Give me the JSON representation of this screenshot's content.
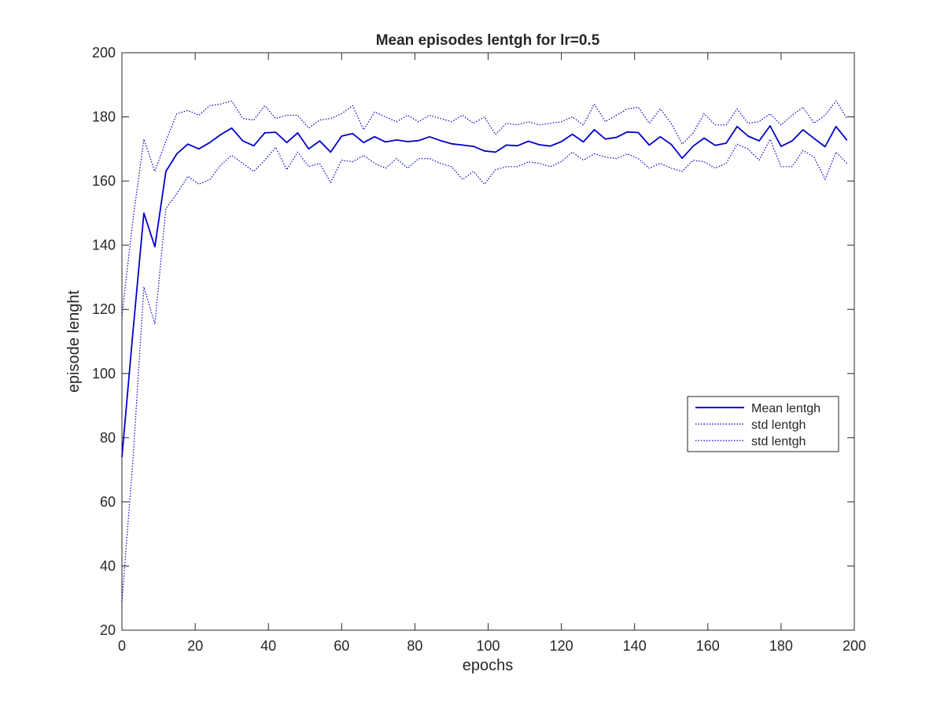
{
  "chart_data": {
    "type": "line",
    "title": "Mean episodes lentgh for lr=0.5",
    "xlabel": "epochs",
    "ylabel": "episode lenght",
    "xlim": [
      0,
      200
    ],
    "ylim": [
      20,
      200
    ],
    "xticks": [
      0,
      20,
      40,
      60,
      80,
      100,
      120,
      140,
      160,
      180,
      200
    ],
    "yticks": [
      20,
      40,
      60,
      80,
      100,
      120,
      140,
      160,
      180,
      200
    ],
    "grid": false,
    "legend_position": "right",
    "line_color": "#0000cc",
    "x": [
      0,
      3,
      6,
      9,
      12,
      15,
      18,
      21,
      24,
      27,
      30,
      33,
      36,
      39,
      42,
      45,
      48,
      51,
      54,
      57,
      60,
      63,
      66,
      69,
      72,
      75,
      78,
      81,
      84,
      87,
      90,
      93,
      96,
      99,
      102,
      105,
      108,
      111,
      114,
      117,
      120,
      123,
      126,
      129,
      132,
      135,
      138,
      141,
      144,
      147,
      150,
      153,
      156,
      159,
      162,
      165,
      168,
      171,
      174,
      177,
      180,
      183,
      186,
      189,
      192,
      195,
      198
    ],
    "series": [
      {
        "name": "Mean lentgh",
        "style": "solid",
        "values": [
          74,
          113,
          150,
          139.5,
          163,
          168.5,
          171.5,
          170,
          172,
          174.5,
          176.5,
          172.5,
          171,
          175,
          175.2,
          172,
          175,
          170,
          172.5,
          169,
          174,
          174.8,
          172,
          173.8,
          172.2,
          172.8,
          172.3,
          172.6,
          173.8,
          172.6,
          171.6,
          171.2,
          170.8,
          169.4,
          169,
          171.2,
          171,
          172.4,
          171.3,
          170.9,
          172.3,
          174.6,
          172.2,
          176,
          173.1,
          173.6,
          175.3,
          175.1,
          171.2,
          173.8,
          171.4,
          167.1,
          170.9,
          173.4,
          171.1,
          171.8,
          177,
          174,
          172.5,
          177.2,
          170.8,
          172.5,
          176,
          173.3,
          170.7,
          177,
          172.7
        ]
      },
      {
        "name": "std lentgh",
        "style": "dotted",
        "values": [
          118,
          148,
          173,
          163,
          172.5,
          181,
          182,
          180.5,
          183.5,
          184,
          185,
          179.5,
          179,
          183.5,
          179.5,
          180.5,
          180.5,
          176.5,
          179,
          179.5,
          181,
          183.5,
          176,
          181.5,
          180,
          178.5,
          180.5,
          178.5,
          180.5,
          179.5,
          178.5,
          180.5,
          178,
          180,
          174.5,
          178,
          177.5,
          178.5,
          177.5,
          178,
          178.5,
          180,
          177.5,
          184,
          178.5,
          180.5,
          182.5,
          183,
          178,
          182.5,
          178,
          171.5,
          175,
          181,
          177.5,
          177.5,
          182.5,
          178,
          178.5,
          181,
          177.5,
          180.5,
          183,
          178,
          180.5,
          185,
          179.5
        ]
      },
      {
        "name": "std lentgh",
        "style": "dotted",
        "values": [
          29,
          73,
          127,
          115.5,
          151.5,
          156,
          161.5,
          159,
          160.5,
          165,
          168,
          165.5,
          163,
          166.5,
          170.5,
          163.5,
          169,
          164.5,
          165.5,
          159.5,
          166.5,
          166,
          168,
          165.5,
          164,
          167,
          164,
          167,
          167,
          165.5,
          164.5,
          160.5,
          163,
          159,
          163.5,
          164.5,
          164.5,
          166,
          165.5,
          164.5,
          166,
          169,
          166.5,
          168.5,
          167.5,
          167,
          168.5,
          167,
          164,
          165.5,
          164,
          163,
          166.5,
          166,
          164,
          165.5,
          171.5,
          170,
          166.5,
          173,
          164.5,
          164.5,
          169.5,
          167.5,
          160.5,
          169,
          165.5
        ]
      }
    ]
  }
}
